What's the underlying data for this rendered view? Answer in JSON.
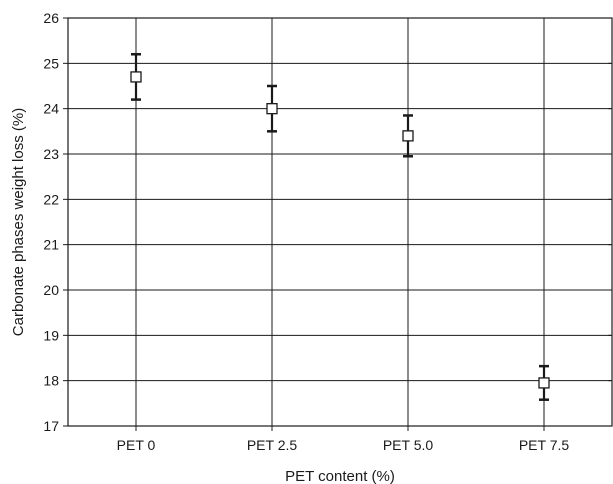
{
  "chart_data": {
    "type": "scatter",
    "title": "",
    "xlabel": "PET content (%)",
    "ylabel": "Carbonate phases weight loss (%)",
    "categories": [
      "PET 0",
      "PET 2.5",
      "PET 5.0",
      "PET 7.5"
    ],
    "values": [
      24.7,
      24.0,
      23.4,
      17.95
    ],
    "error": [
      0.5,
      0.5,
      0.45,
      0.37
    ],
    "ylim": [
      17,
      26
    ],
    "yticks": [
      "17",
      "18",
      "19",
      "20",
      "21",
      "22",
      "23",
      "24",
      "25",
      "26"
    ],
    "grid": true,
    "marker": "open-square",
    "colors": {
      "grid": "#1a1a1a",
      "marker_fill": "#ffffff",
      "marker_edge": "#1a1a1a",
      "error_bar": "#1a1a1a"
    }
  }
}
